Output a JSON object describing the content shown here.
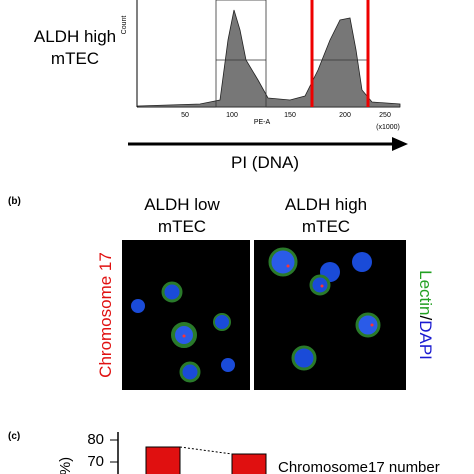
{
  "panel_a": {
    "row_label": [
      "ALDH high",
      "mTEC"
    ],
    "y_axis_label": "Count",
    "x_axis_label": "PE-A",
    "x_ticks": [
      "50",
      "100",
      "150",
      "200",
      "250"
    ],
    "x_unit": "(x1000)",
    "arrow_label": "PI (DNA)"
  },
  "panel_b": {
    "letter": "(b)",
    "columns": [
      [
        "ALDH low",
        "mTEC"
      ],
      [
        "ALDH high",
        "mTEC"
      ]
    ],
    "left_label": "Chromosome 17",
    "right_label": [
      "Lectin",
      "/",
      "DAPI"
    ]
  },
  "panel_c": {
    "letter": "(c)",
    "y_ticks": [
      "80",
      "70"
    ],
    "y_axis_label": "%)",
    "legend": "Chromosome17 number"
  }
}
